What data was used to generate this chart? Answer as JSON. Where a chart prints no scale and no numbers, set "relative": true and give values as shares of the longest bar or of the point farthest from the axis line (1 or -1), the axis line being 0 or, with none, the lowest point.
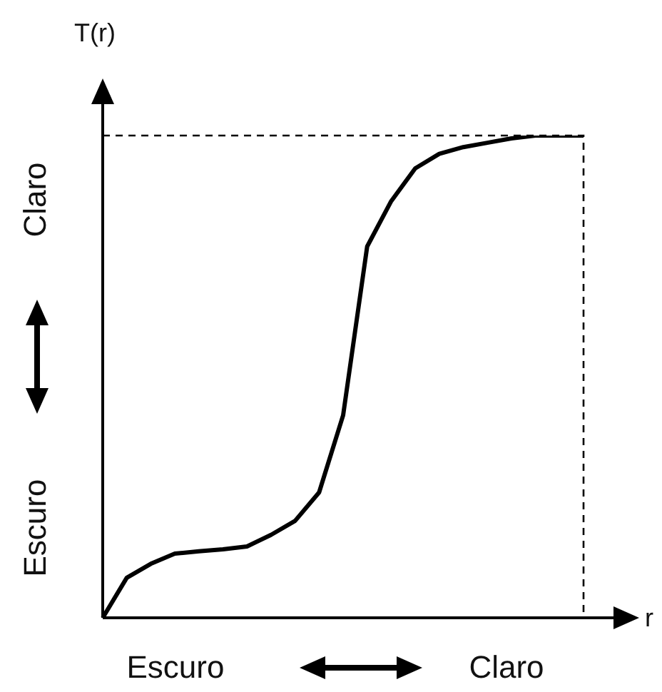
{
  "chart_data": {
    "type": "line",
    "relative": true,
    "xlabel": "r",
    "ylabel": "T(r)",
    "categories": [
      null,
      null,
      null,
      null,
      null,
      null,
      null,
      null,
      null,
      null,
      null,
      null,
      null,
      null,
      null,
      null,
      null,
      null,
      null,
      null,
      null
    ],
    "series": [
      {
        "color": "#000000",
        "values": [
          0,
          0.083,
          0.112,
          0.133,
          0.138,
          0.142,
          0.148,
          0.172,
          0.201,
          0.26,
          0.42,
          0.77,
          0.864,
          0.932,
          0.962,
          0.976,
          0.985,
          0.994,
          1,
          1,
          1
        ]
      }
    ],
    "ref_lines": [
      {
        "axis": "y",
        "value": 1,
        "line_style": "dashed"
      }
    ],
    "annotations": [
      "Claro",
      "Escuro",
      "Escuro",
      "Claro"
    ],
    "marker": "none",
    "line_style": "solid",
    "legend": false
  }
}
